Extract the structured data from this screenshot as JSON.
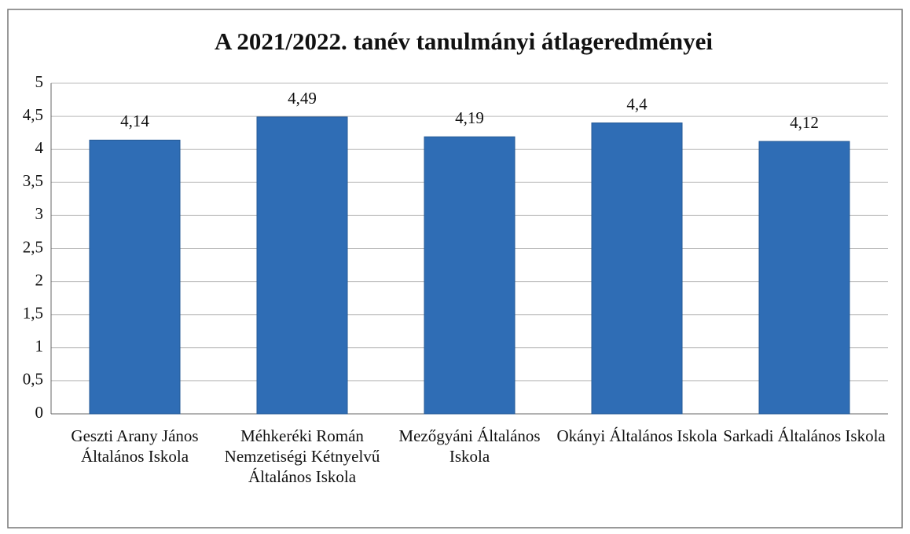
{
  "chart_data": {
    "type": "bar",
    "title": "A 2021/2022. tanév tanulmányi átlageredményei",
    "categories": [
      "Geszti Arany János Általános Iskola",
      "Méhkeréki Román Nemzetiségi Kétnyelvű Általános Iskola",
      "Mezőgyáni Általános Iskola",
      "Okányi Általános Iskola",
      "Sarkadi Általános Iskola"
    ],
    "values": [
      4.14,
      4.49,
      4.19,
      4.4,
      4.12
    ],
    "value_labels": [
      "4,14",
      "4,49",
      "4,19",
      "4,4",
      "4,12"
    ],
    "color": "#2f6db5",
    "ylim": [
      0,
      5
    ],
    "yticks": [
      0,
      {
        "value": 0.5,
        "label": "0,5"
      },
      1,
      {
        "value": 1.5,
        "label": "1,5"
      },
      2,
      {
        "value": 2.5,
        "label": "2,5"
      },
      3,
      {
        "value": 3.5,
        "label": "3,5"
      },
      4,
      {
        "value": 4.5,
        "label": "4,5"
      },
      5
    ],
    "grid": true
  }
}
